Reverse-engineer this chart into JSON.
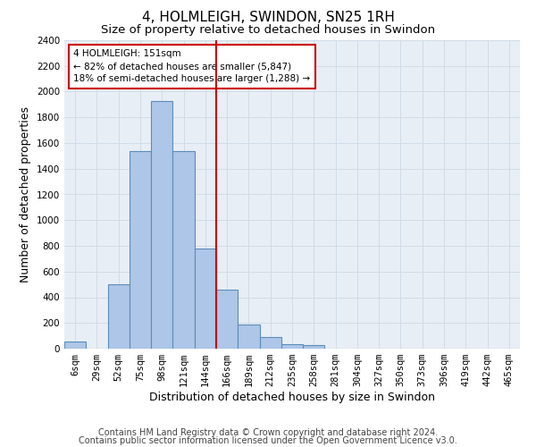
{
  "title": "4, HOLMLEIGH, SWINDON, SN25 1RH",
  "subtitle": "Size of property relative to detached houses in Swindon",
  "xlabel": "Distribution of detached houses by size in Swindon",
  "ylabel": "Number of detached properties",
  "footer1": "Contains HM Land Registry data © Crown copyright and database right 2024.",
  "footer2": "Contains public sector information licensed under the Open Government Licence v3.0.",
  "categories": [
    "6sqm",
    "29sqm",
    "52sqm",
    "75sqm",
    "98sqm",
    "121sqm",
    "144sqm",
    "166sqm",
    "189sqm",
    "212sqm",
    "235sqm",
    "258sqm",
    "281sqm",
    "304sqm",
    "327sqm",
    "350sqm",
    "373sqm",
    "396sqm",
    "419sqm",
    "442sqm",
    "465sqm"
  ],
  "values": [
    55,
    0,
    500,
    1540,
    1930,
    1540,
    780,
    460,
    185,
    90,
    35,
    30,
    0,
    0,
    0,
    0,
    0,
    0,
    0,
    0,
    0
  ],
  "bar_color": "#aec6e8",
  "bar_edge_color": "#5b8db8",
  "highlight_line_color": "#cc0000",
  "annotation_text": "4 HOLMLEIGH: 151sqm\n← 82% of detached houses are smaller (5,847)\n18% of semi-detached houses are larger (1,288) →",
  "annotation_box_color": "#cc0000",
  "ylim": [
    0,
    2400
  ],
  "yticks": [
    0,
    200,
    400,
    600,
    800,
    1000,
    1200,
    1400,
    1600,
    1800,
    2000,
    2200,
    2400
  ],
  "grid_color": "#d0dce8",
  "bg_color": "#e8eef5",
  "title_fontsize": 11,
  "subtitle_fontsize": 9.5,
  "axis_label_fontsize": 9,
  "tick_fontsize": 7.5,
  "footer_fontsize": 7
}
